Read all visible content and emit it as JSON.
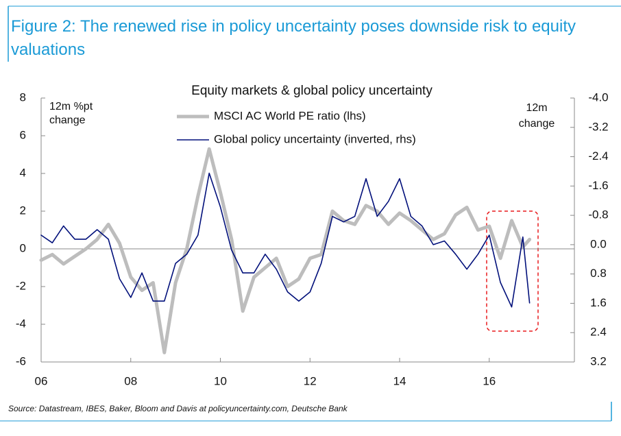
{
  "chart_data": {
    "type": "line",
    "figure_title": "Figure 2: The renewed rise in policy uncertainty poses downside risk to equity valuations",
    "title": "Equity markets & global policy uncertainty",
    "ylabel": "12m %pt change",
    "y2label": "12m change",
    "source": "Source: Datastream, IBES, Baker, Bloom and Davis at policyuncertainty.com, Deutsche Bank",
    "x": [
      2006,
      2006.25,
      2006.5,
      2006.75,
      2007,
      2007.25,
      2007.5,
      2007.75,
      2008,
      2008.25,
      2008.5,
      2008.75,
      2009,
      2009.25,
      2009.5,
      2009.75,
      2010,
      2010.25,
      2010.5,
      2010.75,
      2011,
      2011.25,
      2011.5,
      2011.75,
      2012,
      2012.25,
      2012.5,
      2012.75,
      2013,
      2013.25,
      2013.5,
      2013.75,
      2014,
      2014.25,
      2014.5,
      2014.75,
      2015,
      2015.25,
      2015.5,
      2015.75,
      2016,
      2016.25,
      2016.5,
      2016.75,
      2016.9
    ],
    "xlim": [
      2006,
      2017.9
    ],
    "xticks": [
      {
        "value": 2006,
        "label": "06"
      },
      {
        "value": 2008,
        "label": "08"
      },
      {
        "value": 2010,
        "label": "10"
      },
      {
        "value": 2012,
        "label": "12"
      },
      {
        "value": 2014,
        "label": "14"
      },
      {
        "value": 2016,
        "label": "16"
      }
    ],
    "ylim": [
      -6,
      8
    ],
    "yticks": [
      -6,
      -4,
      -2,
      0,
      2,
      4,
      6,
      8
    ],
    "y2lim": [
      -4,
      3.2
    ],
    "y2_inverted": true,
    "y2ticks": [
      {
        "value": -4,
        "label": "-4.0"
      },
      -3.2,
      -2.4,
      -1.6,
      -0.8,
      {
        "value": 0,
        "label": "0.0"
      },
      0.8,
      1.6,
      2.4,
      3.2
    ],
    "series": [
      {
        "name": "MSCI AC World PE ratio (lhs)",
        "color": "#bdbdbd",
        "width": 5,
        "values": [
          -0.6,
          -0.3,
          -0.8,
          -0.4,
          0.0,
          0.5,
          1.3,
          0.3,
          -1.5,
          -2.2,
          -1.8,
          -5.5,
          -1.8,
          0.0,
          2.8,
          5.3,
          3.0,
          0.5,
          -3.3,
          -1.5,
          -1.0,
          -0.5,
          -2.0,
          -1.6,
          -0.5,
          -0.3,
          2.0,
          1.5,
          1.3,
          2.3,
          2.0,
          1.3,
          1.9,
          1.5,
          1.0,
          0.5,
          0.8,
          1.8,
          2.2,
          1.0,
          1.2,
          -0.5,
          1.5,
          0.1,
          0.5
        ]
      },
      {
        "name": "Global policy uncertainty (inverted, rhs)",
        "color": "#000f7a",
        "width": 1.6,
        "axis": "y2",
        "values": [
          -0.26,
          -0.05,
          -0.51,
          -0.15,
          -0.15,
          -0.41,
          -0.15,
          0.93,
          1.44,
          0.77,
          1.54,
          1.54,
          0.51,
          0.26,
          -0.26,
          -1.95,
          -1.03,
          0.15,
          0.77,
          0.77,
          0.26,
          0.67,
          1.29,
          1.54,
          1.29,
          0.51,
          -0.77,
          -0.62,
          -0.77,
          -1.8,
          -0.77,
          -1.18,
          -1.8,
          -0.77,
          -0.51,
          0,
          -0.1,
          0.26,
          0.67,
          0.26,
          -0.26,
          1.03,
          1.7,
          -0.21,
          1.59
        ]
      }
    ]
  }
}
